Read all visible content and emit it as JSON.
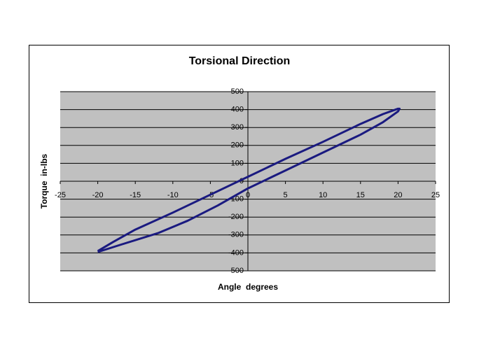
{
  "chart_data": {
    "type": "line",
    "title": "Torsional Direction",
    "x_label": "Angle  degrees",
    "y_label": "Torque  in-lbs",
    "x": [
      -20,
      -17,
      -12,
      -8,
      -4,
      0,
      5,
      10,
      15,
      18,
      20,
      20.2,
      20,
      18,
      15,
      10,
      5,
      0,
      -5,
      -10,
      -15,
      -18,
      -20
    ],
    "values": [
      -395,
      -355,
      -290,
      -220,
      -135,
      -40,
      60,
      160,
      260,
      330,
      390,
      405,
      405,
      375,
      320,
      220,
      125,
      25,
      -75,
      -175,
      -270,
      -340,
      -390
    ],
    "color": "#1a1a80",
    "xlim": [
      -25,
      25
    ],
    "xticks": [
      -25,
      -20,
      -15,
      -10,
      -5,
      0,
      5,
      10,
      15,
      20,
      25
    ],
    "ylim": [
      -500,
      500
    ],
    "yticks": [
      -500,
      -400,
      -300,
      -200,
      -100,
      0,
      100,
      200,
      300,
      400,
      500
    ],
    "grid": true
  }
}
